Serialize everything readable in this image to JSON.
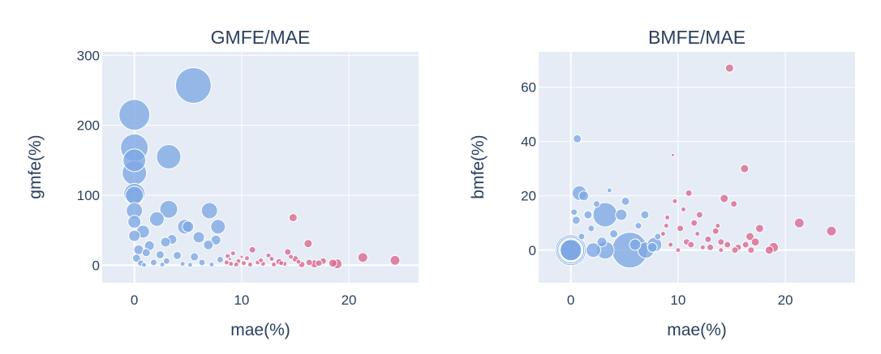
{
  "colors": {
    "blue": "#7ea8e4",
    "pink": "#d9668f",
    "text": "#2a3f5f",
    "plot_bg": "#e5ecf6"
  },
  "chart_data": [
    {
      "type": "scatter",
      "title": "GMFE/MAE",
      "xlabel": "mae(%)",
      "ylabel": "gmfe(%)",
      "xlim": [
        -3,
        26.5
      ],
      "ylim": [
        -25,
        305
      ],
      "xticks": [
        "0",
        "10",
        "20"
      ],
      "xtick_values": [
        0,
        10,
        20
      ],
      "yticks": [
        "0",
        "100",
        "200",
        "300"
      ],
      "ytick_values": [
        0,
        100,
        200,
        300
      ],
      "grid": true,
      "series": [
        {
          "color": "blue",
          "points": [
            {
              "x": 5.5,
              "y": 257,
              "s": 22
            },
            {
              "x": 0.0,
              "y": 215,
              "s": 19
            },
            {
              "x": 0.0,
              "y": 168,
              "s": 17
            },
            {
              "x": 3.2,
              "y": 155,
              "s": 15
            },
            {
              "x": 0.0,
              "y": 150,
              "s": 14
            },
            {
              "x": 0.0,
              "y": 132,
              "s": 15
            },
            {
              "x": 0.0,
              "y": 102,
              "s": 13
            },
            {
              "x": 0.0,
              "y": 100,
              "s": 11
            },
            {
              "x": 3.2,
              "y": 80,
              "s": 11
            },
            {
              "x": 7.0,
              "y": 78,
              "s": 10
            },
            {
              "x": 0.0,
              "y": 78,
              "s": 10
            },
            {
              "x": 2.1,
              "y": 66,
              "s": 9
            },
            {
              "x": 0.0,
              "y": 62,
              "s": 8
            },
            {
              "x": 4.7,
              "y": 55,
              "s": 9
            },
            {
              "x": 7.8,
              "y": 55,
              "s": 9
            },
            {
              "x": 5.0,
              "y": 55,
              "s": 7
            },
            {
              "x": 0.8,
              "y": 48,
              "s": 8
            },
            {
              "x": 0.0,
              "y": 42,
              "s": 7
            },
            {
              "x": 6.0,
              "y": 40,
              "s": 7
            },
            {
              "x": 3.5,
              "y": 37,
              "s": 6
            },
            {
              "x": 7.6,
              "y": 36,
              "s": 6
            },
            {
              "x": 2.9,
              "y": 33,
              "s": 6
            },
            {
              "x": 1.4,
              "y": 28,
              "s": 6
            },
            {
              "x": 6.9,
              "y": 29,
              "s": 6
            },
            {
              "x": 0.4,
              "y": 22,
              "s": 6
            },
            {
              "x": 1.1,
              "y": 18,
              "s": 5
            },
            {
              "x": 2.4,
              "y": 15,
              "s": 5
            },
            {
              "x": 4.0,
              "y": 14,
              "s": 5
            },
            {
              "x": 5.6,
              "y": 12,
              "s": 5
            },
            {
              "x": 0.2,
              "y": 10,
              "s": 5
            },
            {
              "x": 8.0,
              "y": 8,
              "s": 4
            },
            {
              "x": 3.0,
              "y": 6,
              "s": 4
            },
            {
              "x": 1.8,
              "y": 4,
              "s": 4
            },
            {
              "x": 6.3,
              "y": 4,
              "s": 4
            },
            {
              "x": 0.6,
              "y": 3,
              "s": 4
            },
            {
              "x": 4.5,
              "y": 2,
              "s": 3
            },
            {
              "x": 2.6,
              "y": 1,
              "s": 3
            },
            {
              "x": 7.2,
              "y": 1,
              "s": 3
            },
            {
              "x": 0.9,
              "y": 0.5,
              "s": 3
            },
            {
              "x": 5.2,
              "y": 0.5,
              "s": 3
            }
          ]
        },
        {
          "color": "pink",
          "points": [
            {
              "x": 14.8,
              "y": 68,
              "s": 5
            },
            {
              "x": 16.2,
              "y": 31,
              "s": 5
            },
            {
              "x": 21.3,
              "y": 11,
              "s": 6
            },
            {
              "x": 24.3,
              "y": 7,
              "s": 6
            },
            {
              "x": 14.3,
              "y": 19,
              "s": 4
            },
            {
              "x": 11.0,
              "y": 22,
              "s": 4
            },
            {
              "x": 8.7,
              "y": 13,
              "s": 3
            },
            {
              "x": 9.2,
              "y": 17,
              "s": 3
            },
            {
              "x": 12.5,
              "y": 14,
              "s": 3
            },
            {
              "x": 15.0,
              "y": 9,
              "s": 4
            },
            {
              "x": 17.6,
              "y": 6,
              "s": 4
            },
            {
              "x": 18.9,
              "y": 2,
              "s": 6
            },
            {
              "x": 18.5,
              "y": 3,
              "s": 5
            },
            {
              "x": 16.8,
              "y": 2,
              "s": 5
            },
            {
              "x": 17.2,
              "y": 3,
              "s": 4
            },
            {
              "x": 13.5,
              "y": 5,
              "s": 4
            },
            {
              "x": 12.0,
              "y": 2,
              "s": 3
            },
            {
              "x": 11.5,
              "y": 4,
              "s": 3
            },
            {
              "x": 10.8,
              "y": 1,
              "s": 3
            },
            {
              "x": 10.2,
              "y": 3,
              "s": 3
            },
            {
              "x": 9.7,
              "y": 6,
              "s": 3
            },
            {
              "x": 9.0,
              "y": 2,
              "s": 3
            },
            {
              "x": 8.6,
              "y": 4,
              "s": 3
            },
            {
              "x": 13.0,
              "y": 1,
              "s": 3
            },
            {
              "x": 14.0,
              "y": 2,
              "s": 3
            },
            {
              "x": 15.6,
              "y": 1,
              "s": 4
            },
            {
              "x": 16.3,
              "y": 4,
              "s": 4
            },
            {
              "x": 12.8,
              "y": 9,
              "s": 3
            },
            {
              "x": 10.5,
              "y": 10,
              "s": 3
            },
            {
              "x": 11.8,
              "y": 7,
              "s": 3
            },
            {
              "x": 14.6,
              "y": 12,
              "s": 3
            },
            {
              "x": 9.5,
              "y": 1,
              "s": 3
            },
            {
              "x": 13.7,
              "y": 3,
              "s": 3
            },
            {
              "x": 15.3,
              "y": 5,
              "s": 3
            },
            {
              "x": 8.9,
              "y": 9,
              "s": 2
            },
            {
              "x": 10.0,
              "y": 12,
              "s": 2
            }
          ]
        }
      ]
    },
    {
      "type": "scatter",
      "title": "BMFE/MAE",
      "xlabel": "mae(%)",
      "ylabel": "bmfe(%)",
      "xlim": [
        -3,
        26.5
      ],
      "ylim": [
        -12,
        73
      ],
      "xticks": [
        "0",
        "10",
        "20"
      ],
      "xtick_values": [
        0,
        10,
        20
      ],
      "yticks": [
        "0",
        "20",
        "40",
        "60"
      ],
      "ytick_values": [
        0,
        20,
        40,
        60
      ],
      "grid": true,
      "series": [
        {
          "color": "blue",
          "points": [
            {
              "x": 5.5,
              "y": 0,
              "s": 22
            },
            {
              "x": 0.0,
              "y": 0,
              "s": 19
            },
            {
              "x": 0.0,
              "y": 0,
              "s": 17
            },
            {
              "x": 3.2,
              "y": 13,
              "s": 15
            },
            {
              "x": 0.0,
              "y": 0,
              "s": 14
            },
            {
              "x": 0.0,
              "y": 0,
              "s": 15
            },
            {
              "x": 0.0,
              "y": 0,
              "s": 13
            },
            {
              "x": 3.2,
              "y": 0,
              "s": 11
            },
            {
              "x": 7.0,
              "y": 0,
              "s": 10
            },
            {
              "x": 0.8,
              "y": 21,
              "s": 9
            },
            {
              "x": 2.1,
              "y": 0,
              "s": 9
            },
            {
              "x": 4.7,
              "y": 13,
              "s": 7
            },
            {
              "x": 7.8,
              "y": 2,
              "s": 9
            },
            {
              "x": 6.0,
              "y": 2,
              "s": 7
            },
            {
              "x": 1.2,
              "y": 20,
              "s": 6
            },
            {
              "x": 0.6,
              "y": 41,
              "s": 5
            },
            {
              "x": 0.5,
              "y": 11,
              "s": 5
            },
            {
              "x": 2.9,
              "y": 3,
              "s": 6
            },
            {
              "x": 1.6,
              "y": 13,
              "s": 5
            },
            {
              "x": 5.1,
              "y": 18,
              "s": 5
            },
            {
              "x": 6.9,
              "y": 13,
              "s": 5
            },
            {
              "x": 7.6,
              "y": 1,
              "s": 6
            },
            {
              "x": 2.4,
              "y": 17,
              "s": 4
            },
            {
              "x": 4.0,
              "y": 6,
              "s": 5
            },
            {
              "x": 0.3,
              "y": 14,
              "s": 4
            },
            {
              "x": 1.9,
              "y": 8,
              "s": 4
            },
            {
              "x": 3.6,
              "y": 22,
              "s": 3
            },
            {
              "x": 6.3,
              "y": 9,
              "s": 4
            },
            {
              "x": 8.1,
              "y": 5,
              "s": 4
            },
            {
              "x": 1.0,
              "y": 5,
              "s": 4
            }
          ]
        },
        {
          "color": "pink",
          "points": [
            {
              "x": 14.8,
              "y": 67,
              "s": 5
            },
            {
              "x": 16.2,
              "y": 30,
              "s": 5
            },
            {
              "x": 21.3,
              "y": 10,
              "s": 6
            },
            {
              "x": 24.3,
              "y": 7,
              "s": 6
            },
            {
              "x": 14.3,
              "y": 19,
              "s": 5
            },
            {
              "x": 11.0,
              "y": 21,
              "s": 4
            },
            {
              "x": 9.5,
              "y": 35,
              "s": 2
            },
            {
              "x": 15.2,
              "y": 17,
              "s": 4
            },
            {
              "x": 17.6,
              "y": 8,
              "s": 5
            },
            {
              "x": 16.7,
              "y": 5,
              "s": 5
            },
            {
              "x": 18.9,
              "y": 1,
              "s": 6
            },
            {
              "x": 18.5,
              "y": 0,
              "s": 5
            },
            {
              "x": 17.2,
              "y": 3,
              "s": 5
            },
            {
              "x": 13.5,
              "y": 7,
              "s": 4
            },
            {
              "x": 12.0,
              "y": 13,
              "s": 4
            },
            {
              "x": 11.5,
              "y": 10,
              "s": 4
            },
            {
              "x": 10.8,
              "y": 3,
              "s": 4
            },
            {
              "x": 10.2,
              "y": 8,
              "s": 4
            },
            {
              "x": 9.7,
              "y": 18,
              "s": 3
            },
            {
              "x": 9.0,
              "y": 12,
              "s": 3
            },
            {
              "x": 8.6,
              "y": 6,
              "s": 3
            },
            {
              "x": 13.0,
              "y": 1,
              "s": 4
            },
            {
              "x": 14.0,
              "y": 3,
              "s": 4
            },
            {
              "x": 15.6,
              "y": 1,
              "s": 4
            },
            {
              "x": 16.3,
              "y": 2,
              "s": 4
            },
            {
              "x": 12.8,
              "y": 4,
              "s": 4
            },
            {
              "x": 10.5,
              "y": 15,
              "s": 3
            },
            {
              "x": 11.8,
              "y": 6,
              "s": 3
            },
            {
              "x": 14.6,
              "y": 2,
              "s": 4
            },
            {
              "x": 9.3,
              "y": 2,
              "s": 3
            },
            {
              "x": 13.7,
              "y": 9,
              "s": 3
            },
            {
              "x": 15.3,
              "y": 0,
              "s": 4
            },
            {
              "x": 8.9,
              "y": 9,
              "s": 3
            },
            {
              "x": 12.3,
              "y": 1,
              "s": 3
            },
            {
              "x": 11.2,
              "y": 2,
              "s": 4
            },
            {
              "x": 10.0,
              "y": 0,
              "s": 3
            },
            {
              "x": 14.0,
              "y": 0,
              "s": 3
            },
            {
              "x": 16.8,
              "y": 0,
              "s": 4
            }
          ]
        }
      ]
    }
  ]
}
